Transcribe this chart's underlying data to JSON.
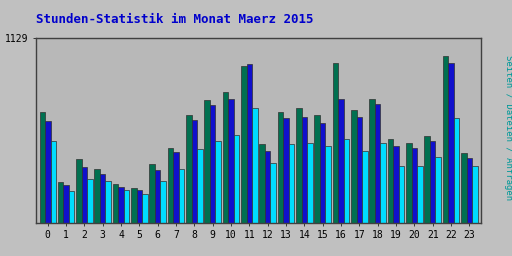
{
  "title": "Stunden-Statistik im Monat Maerz 2015",
  "ylabel_right": "Seiten / Dateien / Anfragen",
  "ytick_label": "1129",
  "hours": [
    0,
    1,
    2,
    3,
    4,
    5,
    6,
    7,
    8,
    9,
    10,
    11,
    12,
    13,
    14,
    15,
    16,
    17,
    18,
    19,
    20,
    21,
    22,
    23
  ],
  "seiten": [
    680,
    250,
    390,
    330,
    240,
    215,
    360,
    460,
    660,
    750,
    800,
    960,
    480,
    680,
    700,
    660,
    980,
    690,
    760,
    510,
    490,
    530,
    1020,
    430
  ],
  "dateien": [
    620,
    230,
    340,
    300,
    220,
    200,
    320,
    435,
    630,
    720,
    760,
    970,
    440,
    640,
    650,
    610,
    760,
    650,
    730,
    470,
    460,
    500,
    980,
    395
  ],
  "anfragen": [
    500,
    195,
    270,
    255,
    200,
    175,
    255,
    330,
    450,
    500,
    535,
    700,
    365,
    480,
    490,
    470,
    510,
    440,
    490,
    350,
    345,
    400,
    640,
    345
  ],
  "color_seiten": "#007050",
  "color_dateien": "#1010cc",
  "color_anfragen": "#00ddff",
  "bg_color": "#c0c0c0",
  "plot_bg": "#b8b8b8",
  "title_color": "#0000cc",
  "ylabel_color": "#009999",
  "border_color": "#404040",
  "ylim": [
    0,
    1129
  ],
  "ytick_val": 1129
}
